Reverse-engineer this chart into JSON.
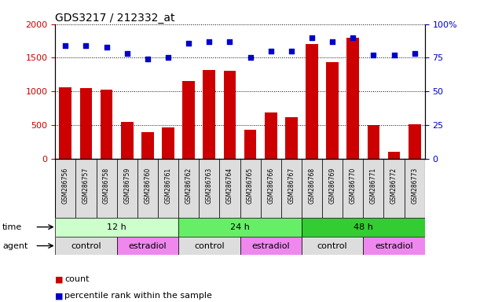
{
  "title": "GDS3217 / 212332_at",
  "samples": [
    "GSM286756",
    "GSM286757",
    "GSM286758",
    "GSM286759",
    "GSM286760",
    "GSM286761",
    "GSM286762",
    "GSM286763",
    "GSM286764",
    "GSM286765",
    "GSM286766",
    "GSM286767",
    "GSM286768",
    "GSM286769",
    "GSM286770",
    "GSM286771",
    "GSM286772",
    "GSM286773"
  ],
  "counts": [
    1060,
    1050,
    1030,
    540,
    390,
    460,
    1150,
    1320,
    1310,
    430,
    690,
    610,
    1700,
    1440,
    1800,
    500,
    100,
    510
  ],
  "percentiles": [
    84,
    84,
    83,
    78,
    74,
    75,
    86,
    87,
    87,
    75,
    80,
    80,
    90,
    87,
    90,
    77,
    77,
    78
  ],
  "bar_color": "#cc0000",
  "dot_color": "#0000cc",
  "ylim_left": [
    0,
    2000
  ],
  "ylim_right": [
    0,
    100
  ],
  "yticks_left": [
    0,
    500,
    1000,
    1500,
    2000
  ],
  "ytick_labels_right": [
    "0",
    "25",
    "50",
    "75",
    "100%"
  ],
  "yticks_right": [
    0,
    25,
    50,
    75,
    100
  ],
  "time_groups": [
    {
      "label": "12 h",
      "start": 0,
      "end": 6,
      "color": "#ccffcc"
    },
    {
      "label": "24 h",
      "start": 6,
      "end": 12,
      "color": "#66ee66"
    },
    {
      "label": "48 h",
      "start": 12,
      "end": 18,
      "color": "#33cc33"
    }
  ],
  "agent_groups": [
    {
      "label": "control",
      "start": 0,
      "end": 3,
      "color": "#dddddd"
    },
    {
      "label": "estradiol",
      "start": 3,
      "end": 6,
      "color": "#ee88ee"
    },
    {
      "label": "control",
      "start": 6,
      "end": 9,
      "color": "#dddddd"
    },
    {
      "label": "estradiol",
      "start": 9,
      "end": 12,
      "color": "#ee88ee"
    },
    {
      "label": "control",
      "start": 12,
      "end": 15,
      "color": "#dddddd"
    },
    {
      "label": "estradiol",
      "start": 15,
      "end": 18,
      "color": "#ee88ee"
    }
  ],
  "sample_cell_color": "#dddddd",
  "legend_count_color": "#cc0000",
  "legend_dot_color": "#0000cc",
  "time_label": "time",
  "agent_label": "agent",
  "count_label": "count",
  "percentile_label": "percentile rank within the sample",
  "background_color": "#ffffff",
  "plot_bg_color": "#ffffff",
  "grid_color": "#000000",
  "tick_label_color_left": "#cc0000",
  "tick_label_color_right": "#0000cc"
}
